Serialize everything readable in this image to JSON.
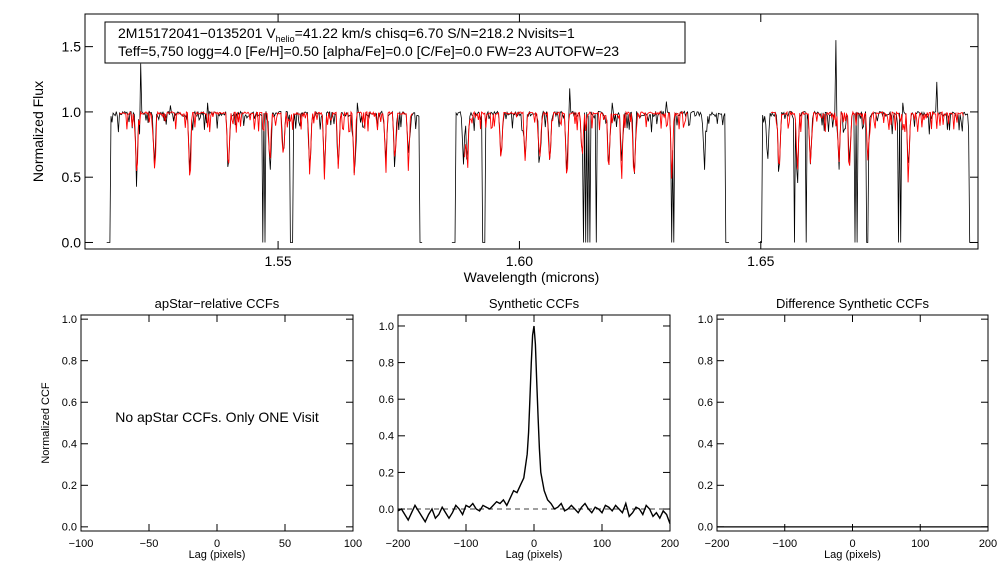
{
  "chart_data": [
    {
      "type": "line",
      "id": "spectrum",
      "title": "",
      "info_line1_prefix": "2M15172041−0135201  V",
      "info_line1_sub": "helio",
      "info_line1_suffix": "=41.22 km/s  chisq=6.70  S/N=218.2  Nvisits=1",
      "info_line2": "Teff=5,750 logg=4.0 [Fe/H]=0.50 [alpha/Fe]=0.0 [C/Fe]=0.0 FW=23 AUTOFW=23",
      "xlabel": "Wavelength (microns)",
      "ylabel": "Normalized Flux",
      "xlim": [
        1.51,
        1.695
      ],
      "ylim": [
        -0.05,
        1.75
      ],
      "xticks": [
        "1.55",
        "1.60",
        "1.65"
      ],
      "xtick_values": [
        1.55,
        1.6,
        1.65
      ],
      "yticks": [
        "0.0",
        "0.5",
        "1.0",
        "1.5"
      ],
      "ytick_values": [
        0.0,
        0.5,
        1.0,
        1.5
      ],
      "chips": [
        [
          1.5145,
          1.58
        ],
        [
          1.586,
          1.6435
        ],
        [
          1.6495,
          1.694
        ]
      ],
      "series": [
        {
          "name": "observed",
          "color": "#000000"
        },
        {
          "name": "model",
          "color": "#ff0000"
        }
      ],
      "spikes": [
        {
          "x": 1.5215,
          "y": 1.37
        },
        {
          "x": 1.5277,
          "y": 1.05
        },
        {
          "x": 1.5355,
          "y": 1.07
        },
        {
          "x": 1.5665,
          "y": 1.07
        },
        {
          "x": 1.6105,
          "y": 1.18
        },
        {
          "x": 1.6193,
          "y": 1.07
        },
        {
          "x": 1.6305,
          "y": 1.08
        },
        {
          "x": 1.6655,
          "y": 1.55
        },
        {
          "x": 1.6795,
          "y": 1.07
        },
        {
          "x": 1.6865,
          "y": 1.23
        }
      ],
      "dropouts": [
        1.5468,
        1.5473,
        1.5525,
        1.5529,
        1.5925,
        1.5928,
        1.6133,
        1.6138,
        1.6142,
        1.6147,
        1.616,
        1.6315,
        1.632,
        1.643,
        1.657,
        1.6595,
        1.6695,
        1.67,
        1.6719,
        1.6722,
        1.6785,
        1.679
      ],
      "lines_deep": [
        1.5207,
        1.5244,
        1.5317,
        1.5397,
        1.5483,
        1.5511,
        1.5566,
        1.5596,
        1.5625,
        1.5658,
        1.5723,
        1.5742,
        1.577,
        1.5884,
        1.5892,
        1.5962,
        1.6012,
        1.6042,
        1.6063,
        1.6098,
        1.613,
        1.6185,
        1.6212,
        1.6238,
        1.6316,
        1.6383,
        1.6514,
        1.6538,
        1.6576,
        1.6603,
        1.6662,
        1.6684,
        1.6722,
        1.6806
      ]
    },
    {
      "type": "line",
      "id": "apstar_ccf",
      "title": "apStar−relative CCFs",
      "xlabel": "Lag (pixels)",
      "ylabel": "Normalized CCF",
      "xlim": [
        -100,
        100
      ],
      "ylim": [
        -0.02,
        1.02
      ],
      "xticks": [
        "−100",
        "−50",
        "0",
        "50",
        "100"
      ],
      "xtick_values": [
        -100,
        -50,
        0,
        50,
        100
      ],
      "yticks": [
        "0.0",
        "0.2",
        "0.4",
        "0.6",
        "0.8",
        "1.0"
      ],
      "ytick_values": [
        0.0,
        0.2,
        0.4,
        0.6,
        0.8,
        1.0
      ],
      "annotation": "No apStar CCFs.  Only ONE Visit",
      "series": []
    },
    {
      "type": "line",
      "id": "synthetic_ccf",
      "title": "Synthetic CCFs",
      "xlabel": "Lag (pixels)",
      "ylabel": "",
      "xlim": [
        -200,
        200
      ],
      "ylim": [
        -0.12,
        1.06
      ],
      "xticks": [
        "−200",
        "−100",
        "0",
        "100",
        "200"
      ],
      "xtick_values": [
        -200,
        -100,
        0,
        100,
        200
      ],
      "yticks": [
        "0.0",
        "0.2",
        "0.4",
        "0.6",
        "0.8",
        "1.0"
      ],
      "ytick_values": [
        0.0,
        0.2,
        0.4,
        0.6,
        0.8,
        1.0
      ],
      "series": [
        {
          "name": "ccf",
          "x": [
            -200,
            -195,
            -190,
            -185,
            -180,
            -175,
            -170,
            -165,
            -160,
            -155,
            -150,
            -145,
            -140,
            -135,
            -130,
            -125,
            -120,
            -115,
            -110,
            -105,
            -100,
            -95,
            -90,
            -85,
            -80,
            -75,
            -70,
            -65,
            -60,
            -55,
            -50,
            -45,
            -40,
            -35,
            -30,
            -25,
            -20,
            -15,
            -10,
            -8,
            -6,
            -4,
            -2,
            0,
            2,
            4,
            6,
            8,
            10,
            15,
            20,
            25,
            30,
            35,
            40,
            45,
            50,
            55,
            60,
            65,
            70,
            75,
            80,
            85,
            90,
            95,
            100,
            105,
            110,
            115,
            120,
            125,
            130,
            135,
            140,
            145,
            150,
            155,
            160,
            165,
            170,
            175,
            180,
            185,
            190,
            195,
            200
          ],
          "y": [
            -0.01,
            0.0,
            -0.03,
            -0.06,
            -0.02,
            0.02,
            -0.01,
            -0.04,
            -0.07,
            -0.03,
            0.0,
            -0.05,
            -0.03,
            0.01,
            -0.02,
            -0.05,
            -0.02,
            0.02,
            0.0,
            -0.03,
            0.02,
            0.01,
            0.03,
            0.0,
            -0.01,
            0.02,
            0.01,
            0.0,
            0.02,
            0.04,
            0.03,
            0.05,
            0.02,
            0.06,
            0.1,
            0.09,
            0.13,
            0.17,
            0.3,
            0.42,
            0.6,
            0.8,
            0.95,
            1.0,
            0.9,
            0.7,
            0.5,
            0.33,
            0.2,
            0.1,
            0.05,
            0.03,
            0.0,
            0.01,
            0.03,
            -0.01,
            0.0,
            0.02,
            0.0,
            -0.02,
            0.01,
            0.03,
            0.0,
            -0.02,
            0.01,
            0.0,
            -0.02,
            0.02,
            0.01,
            -0.01,
            0.02,
            0.0,
            -0.02,
            0.03,
            -0.04,
            -0.02,
            0.01,
            0.0,
            -0.03,
            0.02,
            0.0,
            -0.04,
            -0.02,
            -0.05,
            -0.01,
            -0.03,
            -0.08
          ]
        },
        {
          "name": "zero",
          "style": "dashed",
          "y": 0.0
        }
      ]
    },
    {
      "type": "line",
      "id": "difference_ccf",
      "title": "Difference Synthetic CCFs",
      "xlabel": "Lag (pixels)",
      "ylabel": "",
      "xlim": [
        -200,
        200
      ],
      "ylim": [
        -0.02,
        1.02
      ],
      "xticks": [
        "−200",
        "−100",
        "0",
        "100",
        "200"
      ],
      "xtick_values": [
        -200,
        -100,
        0,
        100,
        200
      ],
      "yticks": [
        "0.0",
        "0.2",
        "0.4",
        "0.6",
        "0.8",
        "1.0"
      ],
      "ytick_values": [
        0.0,
        0.2,
        0.4,
        0.6,
        0.8,
        1.0
      ],
      "series": [
        {
          "name": "difference",
          "x": [
            -200,
            200
          ],
          "y": [
            0.0,
            0.0
          ]
        }
      ]
    }
  ]
}
